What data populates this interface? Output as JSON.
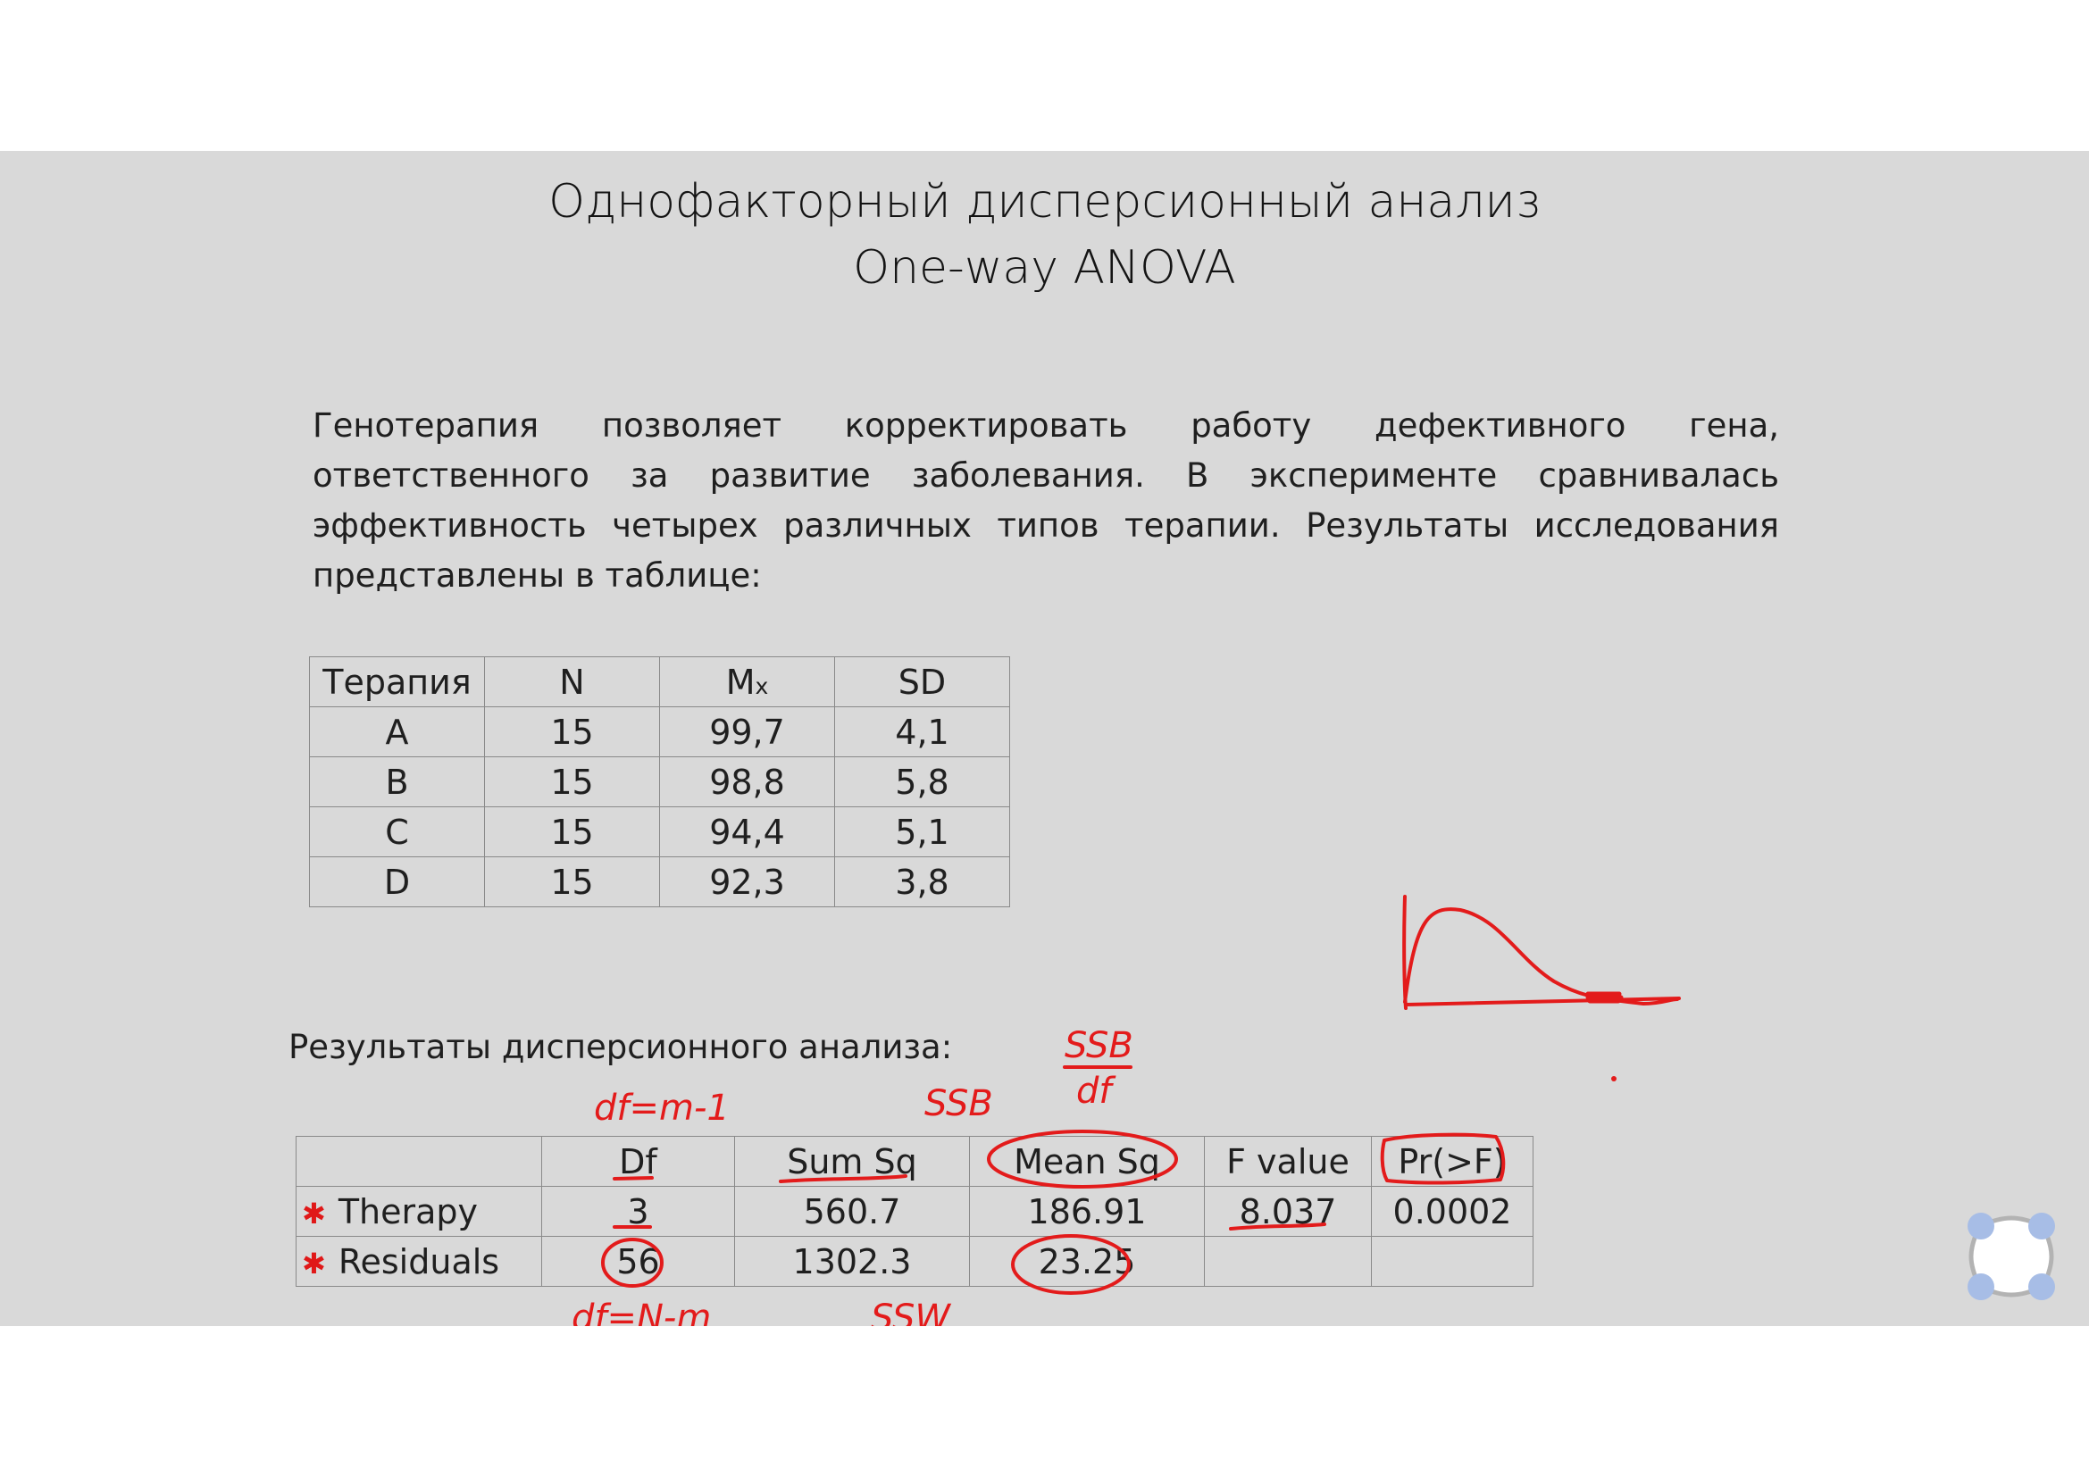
{
  "title": {
    "line1": "Однофакторный дисперсионный анализ",
    "line2": "One-way ANOVA"
  },
  "intro_text": "Генотерапия позволяет корректировать работу дефективного гена, ответственного за развитие заболевания. В эксперименте сравнивалась эффективность четырех различных типов терапии. Результаты исследования представлены в таблице:",
  "data_table": {
    "headers": [
      "Терапия",
      "N",
      "M",
      "SD"
    ],
    "mx_sub": "x",
    "rows": [
      [
        "A",
        "15",
        "99,7",
        "4,1"
      ],
      [
        "B",
        "15",
        "98,8",
        "5,8"
      ],
      [
        "C",
        "15",
        "94,4",
        "5,1"
      ],
      [
        "D",
        "15",
        "92,3",
        "3,8"
      ]
    ]
  },
  "results_label": "Результаты дисперсионного анализа:",
  "anova_table": {
    "headers": [
      "",
      "Df",
      "Sum Sq",
      "Mean Sq",
      "F value",
      "Pr(>F)"
    ],
    "rows": [
      [
        "Therapy",
        "3",
        "560.7",
        "186.91",
        "8.037",
        "0.0002"
      ],
      [
        "Residuals",
        "56",
        "1302.3",
        "23.25",
        "",
        ""
      ]
    ],
    "row_mark": "✱"
  },
  "annotations": {
    "df_between": "df=m-1",
    "ssb": "SSB",
    "ssb_frac_num": "SSB",
    "ssb_frac_den": "df",
    "df_within": "df=N-m",
    "ssw": "SSW"
  },
  "colors": {
    "slide_bg": "#d9d9d9",
    "ink": "#e31b1b",
    "widget": "#a7bde6"
  },
  "icons": {
    "widget": "four-dot-pen-tool-icon"
  }
}
